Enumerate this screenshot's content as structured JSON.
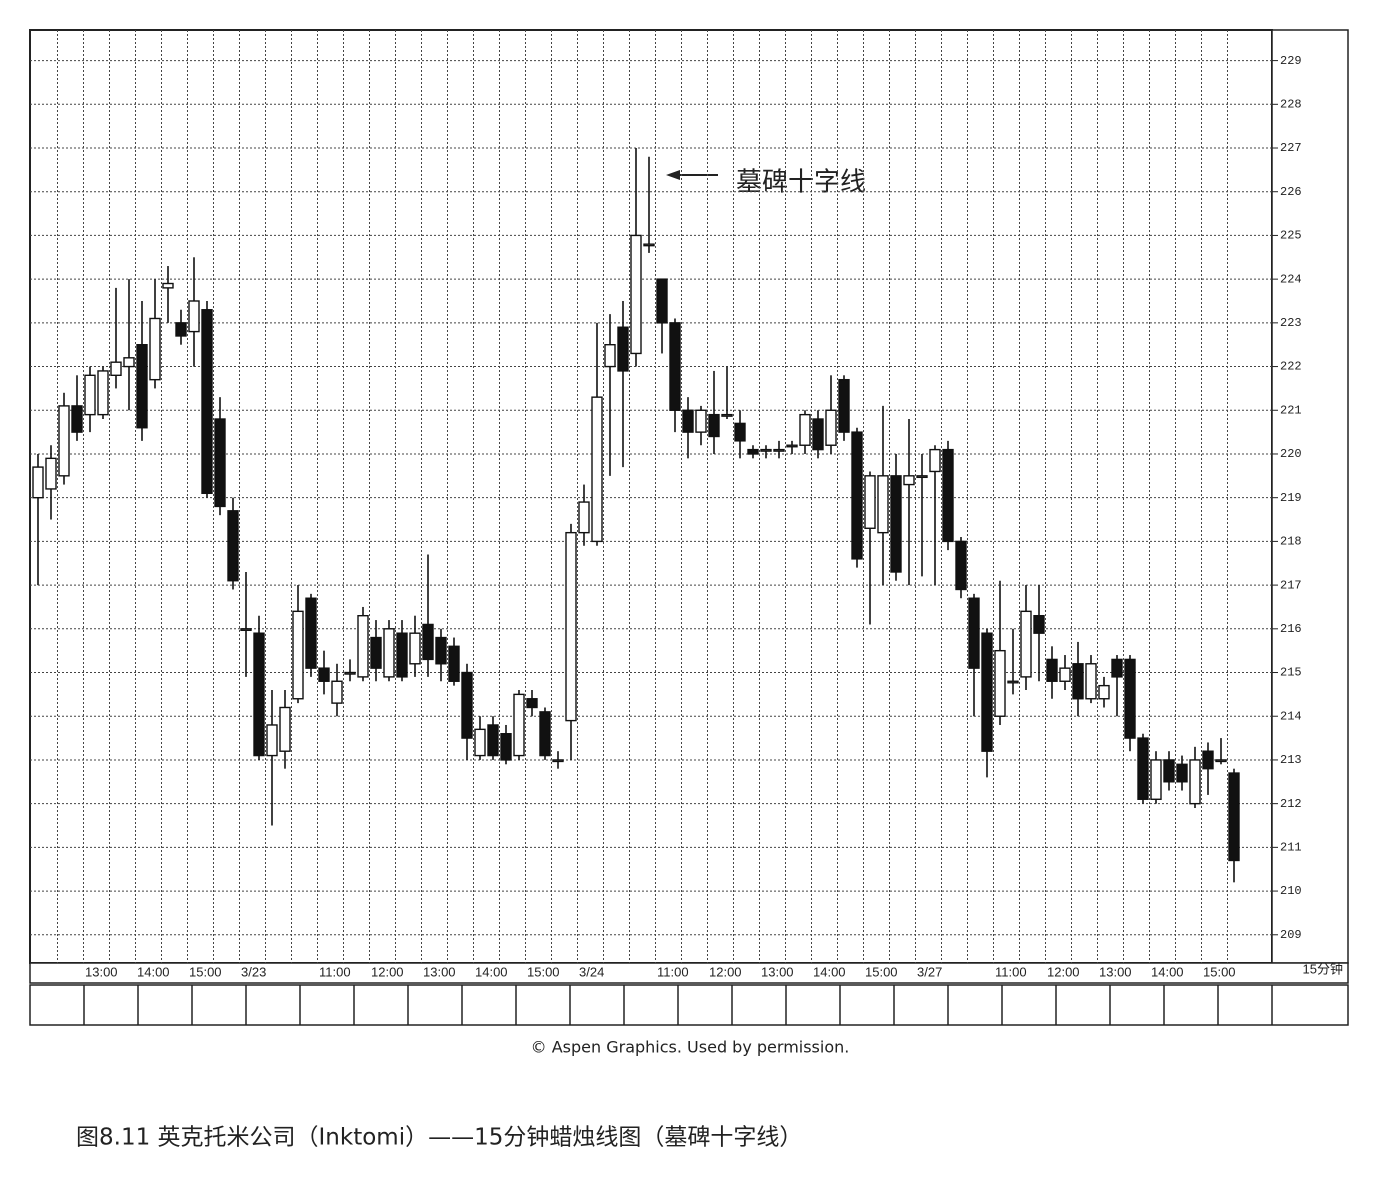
{
  "chart_data": {
    "type": "candlestick",
    "title": "图8.11 英克托米公司（Inktomi）——15分钟蜡烛线图（墓碑十字线）",
    "source": "© Aspen Graphics. Used by permission.",
    "annotation": "墓碑十字线",
    "x_unit": "15分钟",
    "categories": [
      null,
      null,
      null,
      null,
      "13:00",
      null,
      null,
      null,
      "14:00",
      null,
      null,
      null,
      "15:00",
      null,
      null,
      null,
      "3/23",
      null,
      null,
      null,
      null,
      null,
      "11:00",
      null,
      null,
      null,
      "12:00",
      null,
      null,
      null,
      "13:00",
      null,
      null,
      null,
      "14:00",
      null,
      null,
      null,
      "15:00",
      null,
      null,
      null,
      "3/24",
      null,
      null,
      null,
      null,
      null,
      "11:00",
      null,
      null,
      null,
      "12:00",
      null,
      null,
      null,
      "13:00",
      null,
      null,
      null,
      "14:00",
      null,
      null,
      null,
      "15:00",
      null,
      null,
      null,
      "3/27",
      null,
      null,
      null,
      null,
      null,
      "11:00",
      null,
      null,
      null,
      "12:00",
      null,
      null,
      null,
      "13:00",
      null,
      null,
      null,
      "14:00",
      null,
      null,
      null,
      "15:00",
      null,
      null
    ],
    "open": [
      219.0,
      219.2,
      219.5,
      221.1,
      220.9,
      220.9,
      221.8,
      222.0,
      222.5,
      221.7,
      223.8,
      223.0,
      222.8,
      223.3,
      220.8,
      218.7,
      216.0,
      215.9,
      213.1,
      213.2,
      214.4,
      216.7,
      215.1,
      214.3,
      215.0,
      214.9,
      215.8,
      214.9,
      215.9,
      215.2,
      216.1,
      215.8,
      215.6,
      215.0,
      213.1,
      213.8,
      213.6,
      213.1,
      214.4,
      214.1,
      213.0,
      213.9,
      218.2,
      218.0,
      222.0,
      222.9,
      222.3,
      224.8,
      224.0,
      223.0,
      221.0,
      220.5,
      220.9,
      220.9,
      220.7,
      220.1,
      220.1,
      220.1,
      220.2,
      220.2,
      220.8,
      220.2,
      221.7,
      220.5,
      218.3,
      218.2,
      219.5,
      219.3,
      219.5,
      219.6,
      220.1,
      218.0,
      216.7,
      215.9,
      214.0,
      214.8,
      214.9,
      216.3,
      215.3,
      214.8,
      215.2,
      214.4,
      214.4,
      215.3,
      215.3,
      213.5,
      212.1,
      213.0,
      212.9,
      212.0,
      213.2,
      213.0,
      212.7
    ],
    "high": [
      220.0,
      220.2,
      221.4,
      221.8,
      222.0,
      222.0,
      223.8,
      224.0,
      223.5,
      224.0,
      224.3,
      223.3,
      224.5,
      223.5,
      221.3,
      219.0,
      217.3,
      216.3,
      214.6,
      214.6,
      217.0,
      216.8,
      215.5,
      215.2,
      215.3,
      216.5,
      216.2,
      216.2,
      216.2,
      216.3,
      217.7,
      216.0,
      215.8,
      215.2,
      214.0,
      214.0,
      213.8,
      214.6,
      214.6,
      214.2,
      213.2,
      218.4,
      219.3,
      223.0,
      223.2,
      223.5,
      227.0,
      226.8,
      224.0,
      223.1,
      221.3,
      221.1,
      221.9,
      222.0,
      221.0,
      220.2,
      220.2,
      220.3,
      220.3,
      221.0,
      221.0,
      221.8,
      221.8,
      220.6,
      219.6,
      221.1,
      220.0,
      220.8,
      220.0,
      220.2,
      220.3,
      218.1,
      216.8,
      216.0,
      217.1,
      216.0,
      217.0,
      217.0,
      215.6,
      215.4,
      215.7,
      215.4,
      214.9,
      215.4,
      215.4,
      213.6,
      213.2,
      213.2,
      213.1,
      213.3,
      213.4,
      213.5,
      212.8
    ],
    "low": [
      217.0,
      218.5,
      219.3,
      220.3,
      220.5,
      220.8,
      221.5,
      221.0,
      220.3,
      221.5,
      223.0,
      222.5,
      222.0,
      219.0,
      218.6,
      216.9,
      214.9,
      213.0,
      211.5,
      212.8,
      214.3,
      214.9,
      214.5,
      214.0,
      214.8,
      214.8,
      214.8,
      214.8,
      214.8,
      214.9,
      214.9,
      214.8,
      214.7,
      213.0,
      213.0,
      213.0,
      212.9,
      213.0,
      214.0,
      213.0,
      212.8,
      213.0,
      217.9,
      217.9,
      219.5,
      219.7,
      222.0,
      224.6,
      222.3,
      220.5,
      219.9,
      220.2,
      220.0,
      220.8,
      219.9,
      219.9,
      219.9,
      219.9,
      220.0,
      220.0,
      219.9,
      220.0,
      220.3,
      217.4,
      216.1,
      217.0,
      217.1,
      217.0,
      217.2,
      217.0,
      217.8,
      216.7,
      214.0,
      212.6,
      213.8,
      214.5,
      214.6,
      214.8,
      214.4,
      214.6,
      214.0,
      214.3,
      214.2,
      214.0,
      213.2,
      212.0,
      212.0,
      212.3,
      212.3,
      211.9,
      212.2,
      212.9,
      210.2
    ],
    "close": [
      219.7,
      219.9,
      221.1,
      220.5,
      221.8,
      221.9,
      222.1,
      222.2,
      220.6,
      223.1,
      223.9,
      222.7,
      223.5,
      219.1,
      218.8,
      217.1,
      216.0,
      213.1,
      213.8,
      214.2,
      216.4,
      215.1,
      214.8,
      214.8,
      215.0,
      216.3,
      215.1,
      216.0,
      214.9,
      215.9,
      215.3,
      215.2,
      214.8,
      213.5,
      213.7,
      213.1,
      213.0,
      214.5,
      214.2,
      213.1,
      213.0,
      218.2,
      218.9,
      221.3,
      222.5,
      221.9,
      225.0,
      224.8,
      223.0,
      221.0,
      220.5,
      221.0,
      220.4,
      220.9,
      220.3,
      220.0,
      220.1,
      220.1,
      220.2,
      220.9,
      220.1,
      221.0,
      220.5,
      217.6,
      219.5,
      219.5,
      217.3,
      219.5,
      219.5,
      220.1,
      218.0,
      216.9,
      215.1,
      213.2,
      215.5,
      214.8,
      216.4,
      215.9,
      214.8,
      215.1,
      214.4,
      215.2,
      214.7,
      214.9,
      213.5,
      212.1,
      213.0,
      212.5,
      212.5,
      213.0,
      212.8,
      213.0,
      210.7
    ],
    "ylim": [
      208.4,
      229.7
    ],
    "yticks": [
      209,
      210,
      211,
      212,
      213,
      214,
      215,
      216,
      217,
      218,
      219,
      220,
      221,
      222,
      223,
      224,
      225,
      226,
      227,
      228,
      229
    ],
    "grid": true,
    "up_color": "#ffffff",
    "down_color": "#111111"
  }
}
